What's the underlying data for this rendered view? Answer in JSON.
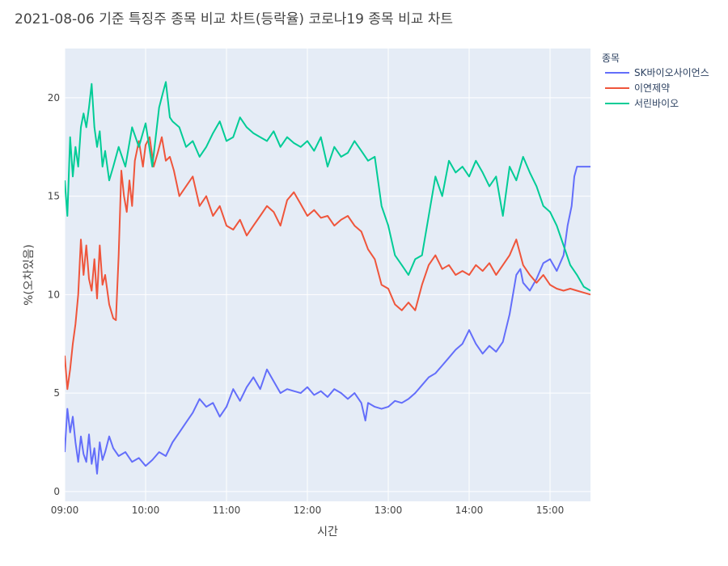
{
  "chart_data": {
    "type": "line",
    "title": "2021-08-06 기준 특징주 종목 비교 차트(등락율) 코로나19 종목 비교 차트",
    "xlabel": "시간",
    "ylabel": "%(오차있음)",
    "xlim": [
      "09:00",
      "15:30"
    ],
    "ylim": [
      -0.5,
      22.5
    ],
    "x_ticks": [
      "09:00",
      "10:00",
      "11:00",
      "12:00",
      "13:00",
      "14:00",
      "15:00"
    ],
    "y_ticks": [
      0,
      5,
      10,
      15,
      20
    ],
    "grid": true,
    "legend": {
      "title": "종목",
      "placement": "top-right-outside"
    },
    "series": [
      {
        "name": "SK바이오사이언스",
        "color": "#636efa",
        "x": [
          "09:00",
          "09:02",
          "09:04",
          "09:06",
          "09:08",
          "09:10",
          "09:12",
          "09:14",
          "09:16",
          "09:18",
          "09:20",
          "09:22",
          "09:24",
          "09:26",
          "09:28",
          "09:30",
          "09:33",
          "09:36",
          "09:40",
          "09:45",
          "09:50",
          "09:55",
          "10:00",
          "10:05",
          "10:10",
          "10:15",
          "10:20",
          "10:25",
          "10:30",
          "10:35",
          "10:40",
          "10:45",
          "10:50",
          "10:55",
          "11:00",
          "11:05",
          "11:10",
          "11:15",
          "11:20",
          "11:25",
          "11:30",
          "11:35",
          "11:40",
          "11:45",
          "11:50",
          "11:55",
          "12:00",
          "12:05",
          "12:10",
          "12:15",
          "12:20",
          "12:25",
          "12:30",
          "12:35",
          "12:40",
          "12:43",
          "12:45",
          "12:50",
          "12:55",
          "13:00",
          "13:05",
          "13:10",
          "13:15",
          "13:20",
          "13:25",
          "13:30",
          "13:35",
          "13:40",
          "13:45",
          "13:50",
          "13:55",
          "14:00",
          "14:05",
          "14:10",
          "14:15",
          "14:20",
          "14:25",
          "14:30",
          "14:35",
          "14:38",
          "14:40",
          "14:45",
          "14:50",
          "14:55",
          "15:00",
          "15:05",
          "15:10",
          "15:13",
          "15:16",
          "15:18",
          "15:20",
          "15:25",
          "15:30"
        ],
        "values": [
          2.0,
          4.2,
          3.0,
          3.8,
          2.5,
          1.5,
          2.8,
          1.9,
          1.5,
          2.9,
          1.4,
          2.2,
          0.9,
          2.5,
          1.6,
          2.0,
          2.8,
          2.2,
          1.8,
          2.0,
          1.5,
          1.7,
          1.3,
          1.6,
          2.0,
          1.8,
          2.5,
          3.0,
          3.5,
          4.0,
          4.7,
          4.3,
          4.5,
          3.8,
          4.3,
          5.2,
          4.6,
          5.3,
          5.8,
          5.2,
          6.2,
          5.6,
          5.0,
          5.2,
          5.1,
          5.0,
          5.3,
          4.9,
          5.1,
          4.8,
          5.2,
          5.0,
          4.7,
          5.0,
          4.5,
          3.6,
          4.5,
          4.3,
          4.2,
          4.3,
          4.6,
          4.5,
          4.7,
          5.0,
          5.4,
          5.8,
          6.0,
          6.4,
          6.8,
          7.2,
          7.5,
          8.2,
          7.5,
          7.0,
          7.4,
          7.1,
          7.6,
          9.0,
          11.0,
          11.3,
          10.6,
          10.2,
          10.8,
          11.6,
          11.8,
          11.2,
          12.0,
          13.5,
          14.5,
          16.0,
          16.5,
          16.5,
          16.5
        ]
      },
      {
        "name": "이연제약",
        "color": "#ef553b",
        "x": [
          "09:00",
          "09:02",
          "09:04",
          "09:06",
          "09:08",
          "09:10",
          "09:12",
          "09:14",
          "09:16",
          "09:18",
          "09:20",
          "09:22",
          "09:24",
          "09:26",
          "09:28",
          "09:30",
          "09:33",
          "09:36",
          "09:38",
          "09:40",
          "09:42",
          "09:44",
          "09:46",
          "09:48",
          "09:50",
          "09:52",
          "09:55",
          "09:58",
          "10:00",
          "10:03",
          "10:06",
          "10:09",
          "10:12",
          "10:15",
          "10:18",
          "10:21",
          "10:25",
          "10:30",
          "10:35",
          "10:40",
          "10:45",
          "10:50",
          "10:55",
          "11:00",
          "11:05",
          "11:10",
          "11:15",
          "11:20",
          "11:25",
          "11:30",
          "11:35",
          "11:40",
          "11:45",
          "11:50",
          "11:55",
          "12:00",
          "12:05",
          "12:10",
          "12:15",
          "12:20",
          "12:25",
          "12:30",
          "12:35",
          "12:40",
          "12:45",
          "12:50",
          "12:55",
          "13:00",
          "13:05",
          "13:10",
          "13:15",
          "13:20",
          "13:25",
          "13:30",
          "13:35",
          "13:40",
          "13:45",
          "13:50",
          "13:55",
          "14:00",
          "14:05",
          "14:10",
          "14:15",
          "14:20",
          "14:25",
          "14:30",
          "14:35",
          "14:40",
          "14:45",
          "14:50",
          "14:55",
          "15:00",
          "15:05",
          "15:10",
          "15:15",
          "15:20",
          "15:25",
          "15:30"
        ],
        "values": [
          6.9,
          5.2,
          6.2,
          7.5,
          8.5,
          10.0,
          12.8,
          11.0,
          12.5,
          10.8,
          10.2,
          11.8,
          9.8,
          12.5,
          10.5,
          11.0,
          9.5,
          8.8,
          8.7,
          12.0,
          16.3,
          15.0,
          14.2,
          15.8,
          14.5,
          16.8,
          17.8,
          16.5,
          17.6,
          18.0,
          16.5,
          17.2,
          18.0,
          16.8,
          17.0,
          16.3,
          15.0,
          15.5,
          16.0,
          14.5,
          15.0,
          14.0,
          14.5,
          13.5,
          13.3,
          13.8,
          13.0,
          13.5,
          14.0,
          14.5,
          14.2,
          13.5,
          14.8,
          15.2,
          14.6,
          14.0,
          14.3,
          13.9,
          14.0,
          13.5,
          13.8,
          14.0,
          13.5,
          13.2,
          12.3,
          11.8,
          10.5,
          10.3,
          9.5,
          9.2,
          9.6,
          9.2,
          10.5,
          11.5,
          12.0,
          11.3,
          11.5,
          11.0,
          11.2,
          11.0,
          11.5,
          11.2,
          11.6,
          11.0,
          11.5,
          12.0,
          12.8,
          11.5,
          11.0,
          10.6,
          11.0,
          10.5,
          10.3,
          10.2,
          10.3,
          10.2,
          10.1,
          10.0
        ]
      },
      {
        "name": "서린바이오",
        "color": "#00cc96",
        "x": [
          "09:00",
          "09:02",
          "09:04",
          "09:06",
          "09:08",
          "09:10",
          "09:12",
          "09:14",
          "09:16",
          "09:18",
          "09:20",
          "09:22",
          "09:24",
          "09:26",
          "09:28",
          "09:30",
          "09:33",
          "09:36",
          "09:40",
          "09:45",
          "09:50",
          "09:55",
          "10:00",
          "10:05",
          "10:10",
          "10:13",
          "10:15",
          "10:18",
          "10:20",
          "10:25",
          "10:30",
          "10:35",
          "10:40",
          "10:45",
          "10:50",
          "10:55",
          "11:00",
          "11:05",
          "11:10",
          "11:15",
          "11:20",
          "11:25",
          "11:30",
          "11:35",
          "11:40",
          "11:45",
          "11:50",
          "11:55",
          "12:00",
          "12:05",
          "12:10",
          "12:15",
          "12:20",
          "12:25",
          "12:30",
          "12:35",
          "12:40",
          "12:45",
          "12:50",
          "12:55",
          "13:00",
          "13:05",
          "13:10",
          "13:15",
          "13:20",
          "13:25",
          "13:30",
          "13:35",
          "13:40",
          "13:45",
          "13:50",
          "13:55",
          "14:00",
          "14:05",
          "14:10",
          "14:15",
          "14:20",
          "14:25",
          "14:30",
          "14:35",
          "14:40",
          "14:45",
          "14:50",
          "14:55",
          "15:00",
          "15:05",
          "15:10",
          "15:15",
          "15:20",
          "15:25",
          "15:30"
        ],
        "values": [
          15.8,
          14.0,
          18.0,
          16.0,
          17.5,
          16.5,
          18.5,
          19.2,
          18.5,
          19.5,
          20.7,
          18.5,
          17.5,
          18.3,
          16.5,
          17.3,
          15.8,
          16.5,
          17.5,
          16.5,
          18.5,
          17.5,
          18.7,
          16.5,
          19.5,
          20.3,
          20.8,
          19.0,
          18.8,
          18.5,
          17.5,
          17.8,
          17.0,
          17.5,
          18.2,
          18.8,
          17.8,
          18.0,
          19.0,
          18.5,
          18.2,
          18.0,
          17.8,
          18.3,
          17.5,
          18.0,
          17.7,
          17.5,
          17.8,
          17.3,
          18.0,
          16.5,
          17.5,
          17.0,
          17.2,
          17.8,
          17.3,
          16.8,
          17.0,
          14.5,
          13.5,
          12.0,
          11.5,
          11.0,
          11.8,
          12.0,
          14.0,
          16.0,
          15.0,
          16.8,
          16.2,
          16.5,
          16.0,
          16.8,
          16.2,
          15.5,
          16.0,
          14.0,
          16.5,
          15.8,
          17.0,
          16.2,
          15.5,
          14.5,
          14.2,
          13.5,
          12.5,
          11.5,
          11.0,
          10.4,
          10.2
        ]
      }
    ]
  }
}
